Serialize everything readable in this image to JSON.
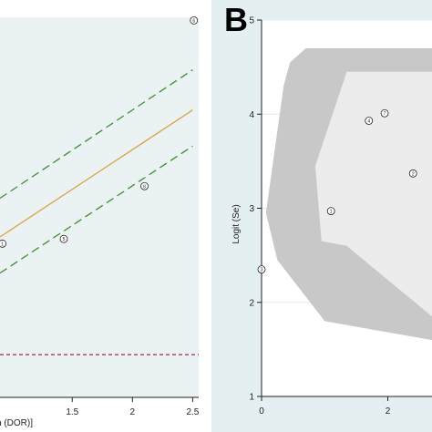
{
  "chart_data": [
    {
      "type": "line",
      "panel_label": "",
      "title": "",
      "xlabel": "n (DOR)]",
      "ylabel": "",
      "xlim": [
        0.9,
        2.55
      ],
      "ylim": [
        -0.5,
        5.2
      ],
      "x_ticks": [
        1.5,
        2,
        2.5
      ],
      "x_tick_labels": [
        "1.5",
        "2",
        "2.5"
      ],
      "grid": "horizontal",
      "points": [
        {
          "x": 0.92,
          "y": 1.8,
          "label": "1"
        },
        {
          "x": 1.43,
          "y": 1.87,
          "label": "5"
        },
        {
          "x": 2.1,
          "y": 2.66,
          "label": "8"
        },
        {
          "x": 2.51,
          "y": 5.14,
          "label": "6"
        }
      ],
      "series": [
        {
          "kind": "fit",
          "color": "#d9a441",
          "dash": "solid",
          "values": [
            [
              0.9,
              1.9
            ],
            [
              2.5,
              3.8
            ]
          ]
        },
        {
          "kind": "ci-upper",
          "color": "#3e8f2e",
          "dash": "dashed",
          "values": [
            [
              0.9,
              2.48
            ],
            [
              2.5,
              4.4
            ]
          ]
        },
        {
          "kind": "ci-lower",
          "color": "#3e8f2e",
          "dash": "dashed",
          "values": [
            [
              0.9,
              1.36
            ],
            [
              2.5,
              3.26
            ]
          ]
        },
        {
          "kind": "reference",
          "color": "#a0284f",
          "dash": "dashed",
          "values": [
            [
              0.9,
              0.14
            ],
            [
              2.55,
              0.14
            ]
          ]
        }
      ]
    },
    {
      "type": "scatter",
      "panel_label": "B",
      "title": "",
      "xlabel": "",
      "ylabel": "Logit (Se)",
      "xlim": [
        0,
        2.7
      ],
      "ylim": [
        1,
        5
      ],
      "x_ticks": [
        0,
        2
      ],
      "x_tick_labels": [
        "0",
        "2"
      ],
      "y_ticks": [
        1,
        2,
        3,
        4,
        5
      ],
      "y_tick_labels": [
        "1",
        "2",
        "3",
        "4",
        "5"
      ],
      "grid": "horizontal",
      "points": [
        {
          "x": 0.0,
          "y": 2.35,
          "label": "3"
        },
        {
          "x": 1.1,
          "y": 2.97,
          "label": "1"
        },
        {
          "x": 1.7,
          "y": 3.93,
          "label": "4"
        },
        {
          "x": 1.95,
          "y": 4.01,
          "label": "7"
        },
        {
          "x": 2.4,
          "y": 3.37,
          "label": "2"
        }
      ],
      "regions": [
        {
          "name": "prediction-region",
          "color": "#c8c8c8",
          "polygon": [
            [
              0.45,
              4.55
            ],
            [
              0.7,
              4.7
            ],
            [
              1.4,
              4.7
            ],
            [
              3.0,
              4.7
            ],
            [
              3.0,
              1.6
            ],
            [
              1.0,
              1.8
            ],
            [
              0.25,
              2.45
            ],
            [
              0.07,
              2.95
            ],
            [
              0.35,
              4.3
            ]
          ]
        },
        {
          "name": "confidence-region",
          "color": "#ececec",
          "polygon": [
            [
              0.85,
              3.45
            ],
            [
              1.35,
              4.45
            ],
            [
              3.0,
              4.45
            ],
            [
              3.0,
              1.85
            ],
            [
              1.35,
              2.6
            ],
            [
              0.95,
              2.65
            ]
          ]
        }
      ]
    }
  ]
}
